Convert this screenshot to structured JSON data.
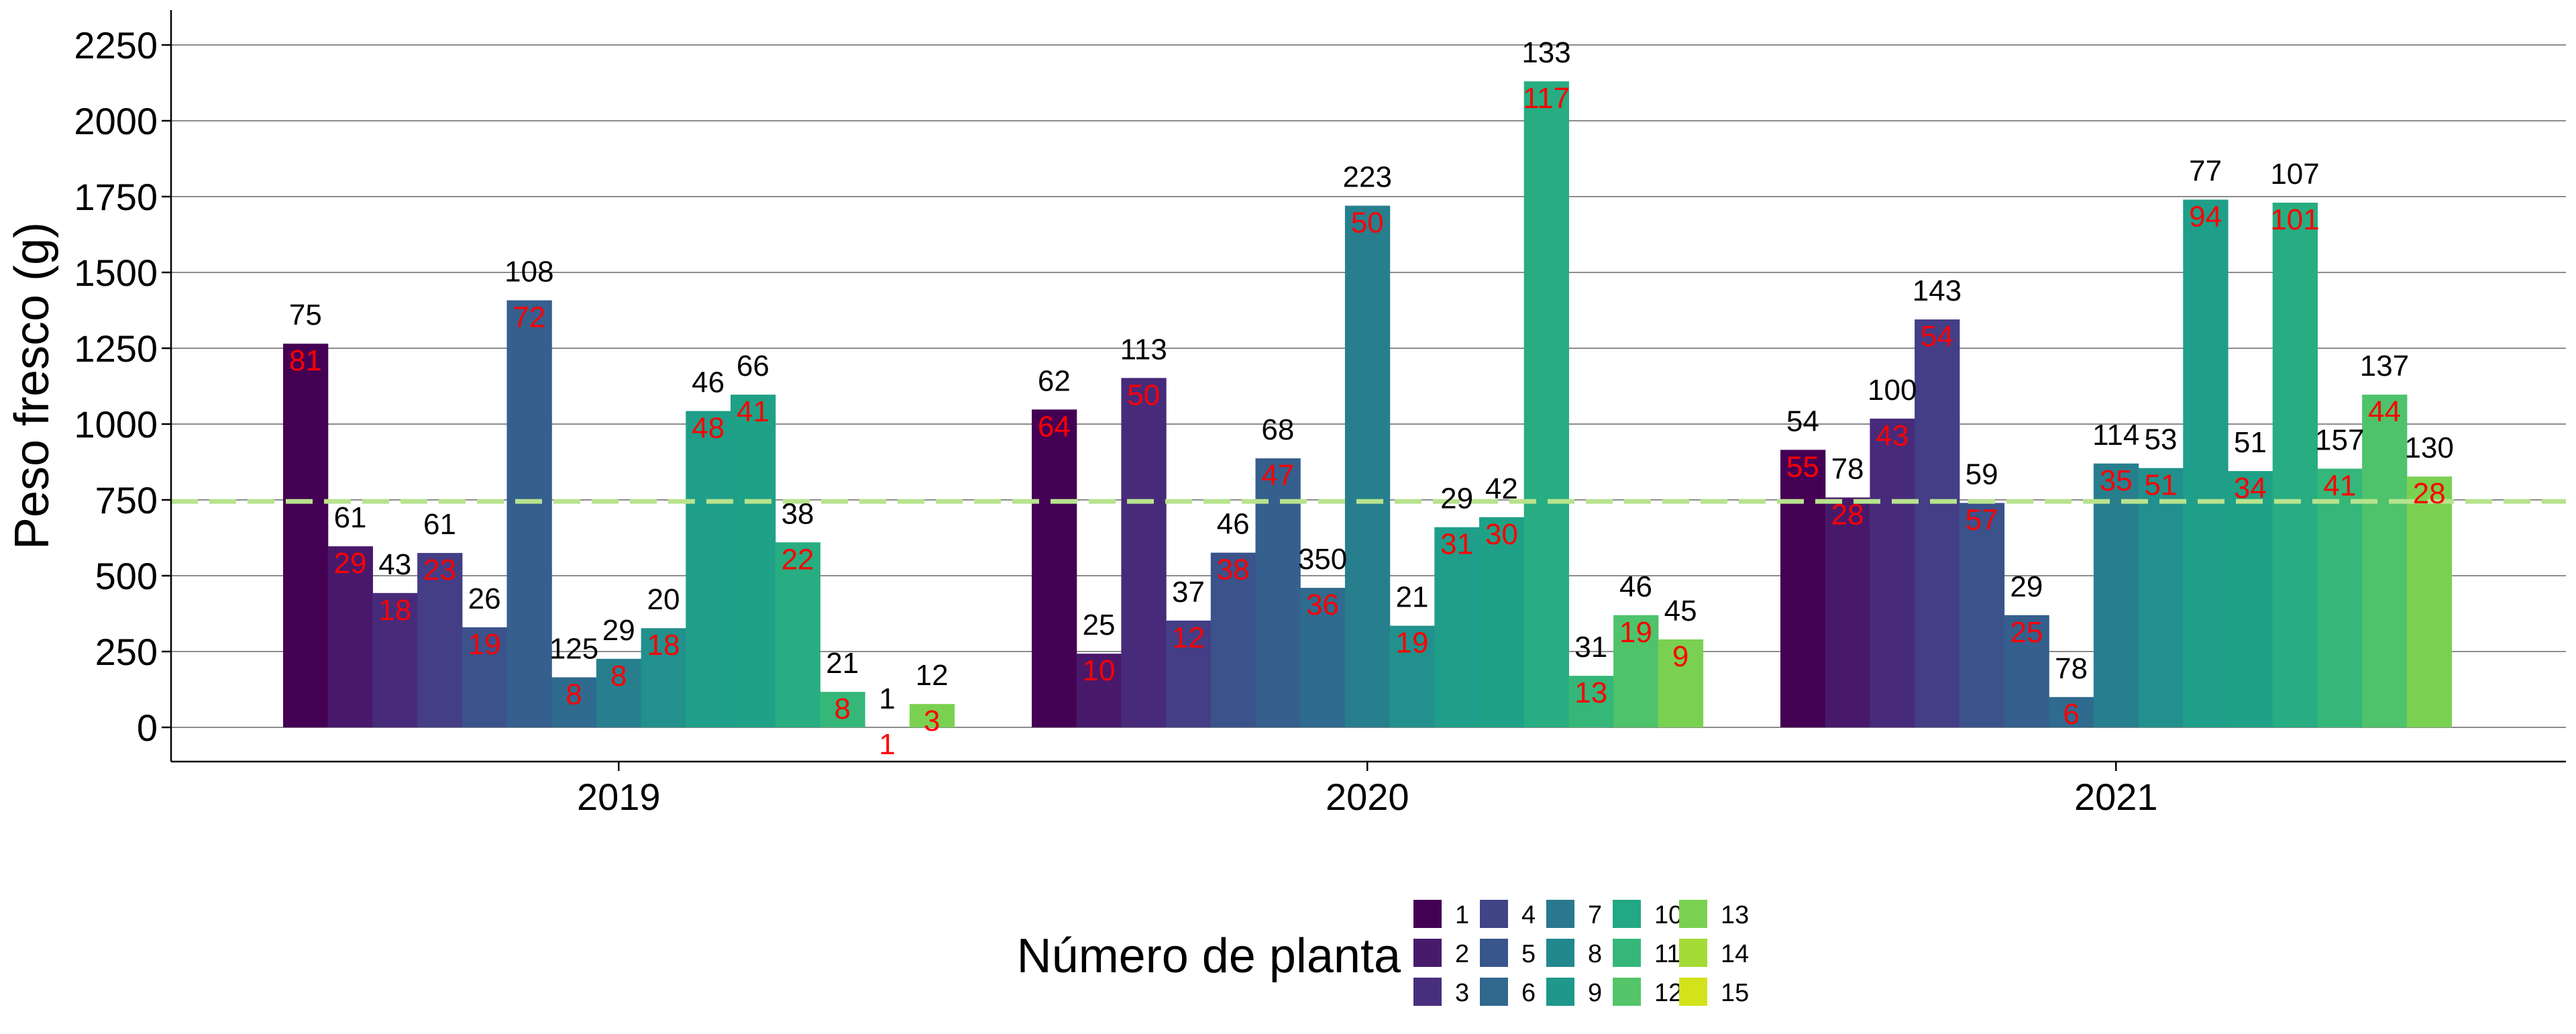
{
  "chart_data": {
    "type": "bar",
    "title": "",
    "xlabel": "",
    "ylabel": "Peso fresco (g)",
    "ylim": [
      -100,
      2350
    ],
    "yticks": [
      0,
      250,
      500,
      750,
      1000,
      1250,
      1500,
      1750,
      2000,
      2250
    ],
    "grid": "horizontal",
    "categories": [
      "2019",
      "2020",
      "2021"
    ],
    "reference_line": {
      "y": 745,
      "style": "dashed",
      "color": "#b7e38e"
    },
    "legend": {
      "title": "Número de planta",
      "position": "bottom",
      "entries": [
        "1",
        "2",
        "3",
        "4",
        "5",
        "6",
        "7",
        "8",
        "9",
        "10",
        "11",
        "12",
        "13",
        "14",
        "15"
      ]
    },
    "colors": [
      "#440154",
      "#481a6c",
      "#472f7d",
      "#414487",
      "#39568c",
      "#31688e",
      "#2a788e",
      "#23888e",
      "#1f988b",
      "#22a884",
      "#35b779",
      "#54c568",
      "#7ad151",
      "#a5db36",
      "#d2e21b"
    ],
    "bar_colors": [
      "#440154",
      "#48196b",
      "#472b7a",
      "#433e85",
      "#3b528b",
      "#355f8d",
      "#2f6b8e",
      "#277f8e",
      "#22908c",
      "#1f9e89",
      "#1fa187",
      "#27ad81",
      "#35b779",
      "#4ec36b",
      "#7ad151"
    ],
    "series_values": {
      "2019": [
        1265,
        597,
        443,
        575,
        330,
        1408,
        165,
        226,
        327,
        1043,
        1097,
        610,
        117,
        0,
        77
      ],
      "2020": [
        1048,
        243,
        1152,
        352,
        576,
        887,
        460,
        1720,
        335,
        660,
        693,
        2130,
        170,
        370,
        290
      ],
      "2021": [
        915,
        758,
        1018,
        1345,
        740,
        370,
        100,
        870,
        855,
        1740,
        845,
        1730,
        853,
        1097,
        827
      ]
    },
    "top_labels": {
      "2019": [
        "75",
        "61",
        "43",
        "61",
        "26",
        "108",
        "125",
        "29",
        "20",
        "46",
        "66",
        "38",
        "21",
        "1",
        "12"
      ],
      "2020": [
        "62",
        "25",
        "113",
        "37",
        "46",
        "68",
        "350",
        "223",
        "21",
        "29",
        "42",
        "133",
        "31",
        "46",
        "45"
      ],
      "2021": [
        "54",
        "78",
        "100",
        "143",
        "59",
        "29",
        "78",
        "114",
        "53",
        "77",
        "51",
        "107",
        "157",
        "137",
        "130"
      ]
    },
    "inner_labels": {
      "2019": [
        "81",
        "29",
        "18",
        "23",
        "19",
        "72",
        "8",
        "8",
        "18",
        "48",
        "41",
        "22",
        "8",
        "1",
        "3"
      ],
      "2020": [
        "64",
        "10",
        "50",
        "12",
        "38",
        "47",
        "36",
        "50",
        "19",
        "31",
        "30",
        "117",
        "13",
        "19",
        "9"
      ],
      "2021": [
        "55",
        "28",
        "43",
        "54",
        "57",
        "25",
        "6",
        "35",
        "51",
        "94",
        "34",
        "101",
        "41",
        "44",
        "28"
      ]
    }
  }
}
